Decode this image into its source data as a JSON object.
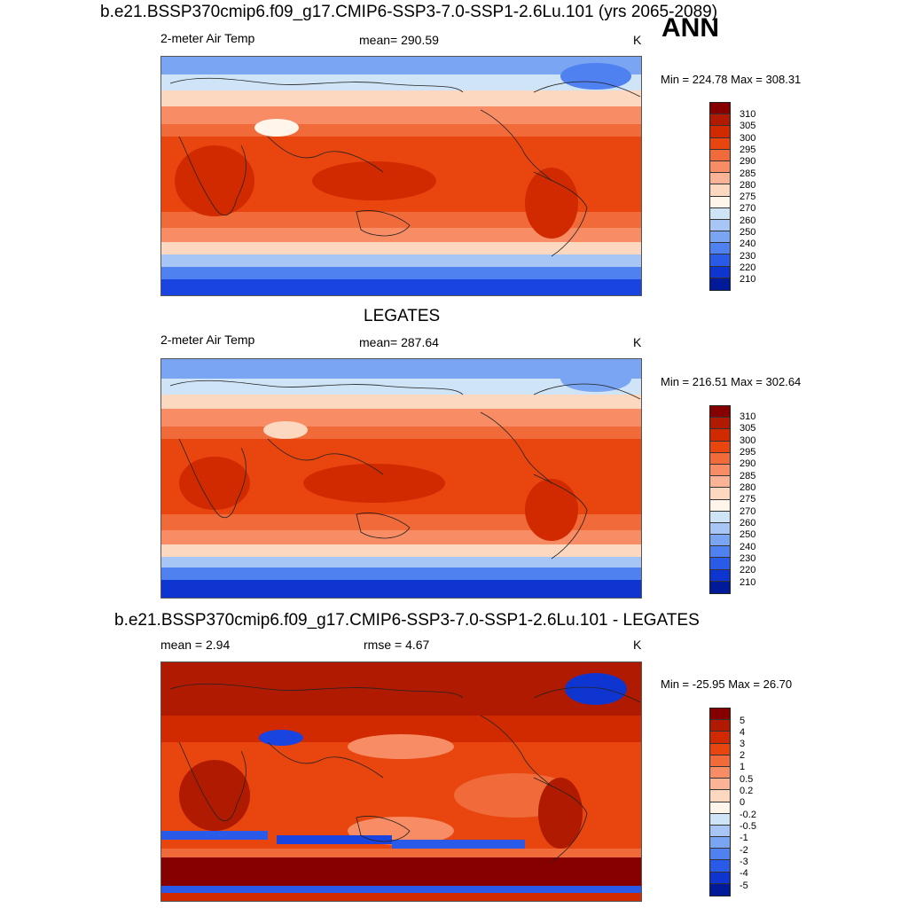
{
  "header": {
    "case_title": "b.e21.BSSP370cmip6.f09_g17.CMIP6-SSP3-7.0-SSP1-2.6Lu.101 (yrs 2065-2089)",
    "season": "ANN"
  },
  "panel1": {
    "variable": "2-meter Air Temp",
    "stat": "mean= 290.59",
    "units": "K",
    "minmax": "Min = 224.78 Max = 308.31"
  },
  "panel2": {
    "title": "LEGATES",
    "variable": "2-meter Air Temp",
    "stat": "mean= 287.64",
    "units": "K",
    "minmax": "Min = 216.51 Max = 302.64"
  },
  "panel3": {
    "title": "b.e21.BSSP370cmip6.f09_g17.CMIP6-SSP3-7.0-SSP1-2.6Lu.101 - LEGATES",
    "stat_mean": "mean =   2.94",
    "stat_rmse": "rmse =   4.67",
    "units": "K",
    "minmax": "Min = -25.95 Max =  26.70"
  },
  "colorbar_abs": {
    "labels": [
      "310",
      "305",
      "300",
      "295",
      "290",
      "285",
      "280",
      "275",
      "270",
      "260",
      "250",
      "240",
      "230",
      "220",
      "210"
    ],
    "colors": [
      "#870000",
      "#b01a00",
      "#d12a00",
      "#e8450f",
      "#f06a3a",
      "#f78c65",
      "#fbb395",
      "#fcd8c0",
      "#fff5ea",
      "#cfe4f7",
      "#a8c6f5",
      "#7aa5f3",
      "#4f82f0",
      "#2a5be8",
      "#0f35d0",
      "#001a9a"
    ]
  },
  "colorbar_diff": {
    "labels": [
      "5",
      "4",
      "3",
      "2",
      "1",
      "0.5",
      "0.2",
      "0",
      "-0.2",
      "-0.5",
      "-1",
      "-2",
      "-3",
      "-4",
      "-5"
    ],
    "colors": [
      "#870000",
      "#b01a00",
      "#d12a00",
      "#e8450f",
      "#f06a3a",
      "#f78c65",
      "#fbb395",
      "#fcd8c0",
      "#fff5ea",
      "#cfe4f7",
      "#a8c6f5",
      "#7aa5f3",
      "#4f82f0",
      "#2a5be8",
      "#0f35d0",
      "#001a9a"
    ]
  }
}
